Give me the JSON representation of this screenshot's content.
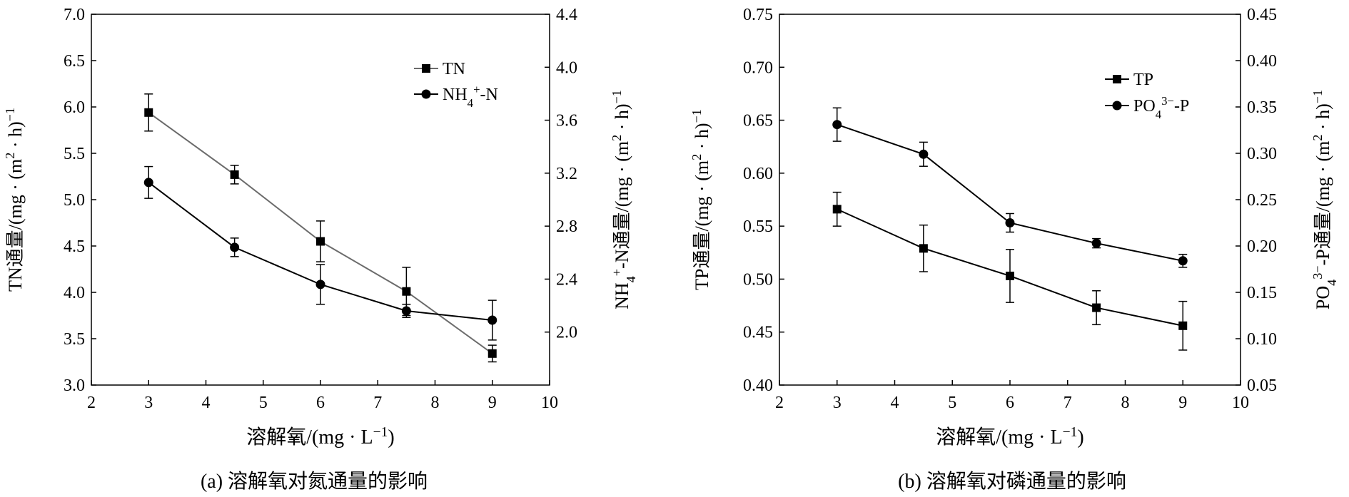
{
  "chart_data": [
    {
      "type": "line",
      "caption": "(a) 溶解氧对氮通量的影响",
      "xlabel": "溶解氧/(mg·L⁻¹)",
      "ylabel_left": "TN通量/(mg·(m²·h)⁻¹)",
      "ylabel_right": "NH₄⁺-N通量/(mg·(m²·h)⁻¹)",
      "xlim": [
        2,
        10
      ],
      "ylim_left": [
        3.0,
        7.0
      ],
      "ylim_right": [
        1.6,
        4.4
      ],
      "x_ticks": [
        "2",
        "3",
        "4",
        "5",
        "6",
        "7",
        "8",
        "9",
        "10"
      ],
      "y_ticks_left": [
        "3.0",
        "3.5",
        "4.0",
        "4.5",
        "5.0",
        "5.5",
        "6.0",
        "6.5",
        "7.0"
      ],
      "y_ticks_right": [
        "2.0",
        "2.4",
        "2.8",
        "3.2",
        "3.6",
        "4.0",
        "4.4"
      ],
      "legend_position": "top-right",
      "series": [
        {
          "name": "TN",
          "axis": "left",
          "marker": "square",
          "color": "#6b6b6b",
          "x": [
            3,
            4.5,
            6,
            7.5,
            9
          ],
          "y": [
            5.94,
            5.27,
            4.55,
            4.01,
            3.34
          ],
          "err": [
            0.2,
            0.1,
            0.22,
            0.26,
            0.09
          ]
        },
        {
          "name": "NH4+-N",
          "axis": "right",
          "marker": "circle",
          "color": "#000000",
          "x": [
            3,
            4.5,
            6,
            7.5,
            9
          ],
          "y": [
            3.13,
            2.64,
            2.36,
            2.16,
            2.09
          ],
          "err": [
            0.12,
            0.07,
            0.15,
            0.05,
            0.15
          ]
        }
      ]
    },
    {
      "type": "line",
      "caption": "(b) 溶解氧对磷通量的影响",
      "xlabel": "溶解氧/(mg·L⁻¹)",
      "ylabel_left": "TP通量/(mg·(m²·h)⁻¹)",
      "ylabel_right": "PO₄³⁻-P通量/(mg·(m²·h)⁻¹)",
      "xlim": [
        2,
        10
      ],
      "ylim_left": [
        0.4,
        0.75
      ],
      "ylim_right": [
        0.05,
        0.45
      ],
      "x_ticks": [
        "2",
        "3",
        "4",
        "5",
        "6",
        "7",
        "8",
        "9",
        "10"
      ],
      "y_ticks_left": [
        "0.40",
        "0.45",
        "0.50",
        "0.55",
        "0.60",
        "0.65",
        "0.70",
        "0.75"
      ],
      "y_ticks_right": [
        "0.05",
        "0.10",
        "0.15",
        "0.20",
        "0.25",
        "0.30",
        "0.35",
        "0.40",
        "0.45"
      ],
      "legend_position": "top-right",
      "series": [
        {
          "name": "TP",
          "axis": "left",
          "marker": "square",
          "color": "#000000",
          "x": [
            3,
            4.5,
            6,
            7.5,
            9
          ],
          "y": [
            0.566,
            0.529,
            0.503,
            0.473,
            0.456
          ],
          "err": [
            0.016,
            0.022,
            0.025,
            0.016,
            0.023
          ]
        },
        {
          "name": "PO43--P",
          "axis": "right",
          "marker": "circle",
          "color": "#000000",
          "x": [
            3,
            4.5,
            6,
            7.5,
            9
          ],
          "y": [
            0.331,
            0.299,
            0.225,
            0.203,
            0.184
          ],
          "err": [
            0.018,
            0.013,
            0.01,
            0.005,
            0.007
          ]
        }
      ]
    }
  ]
}
